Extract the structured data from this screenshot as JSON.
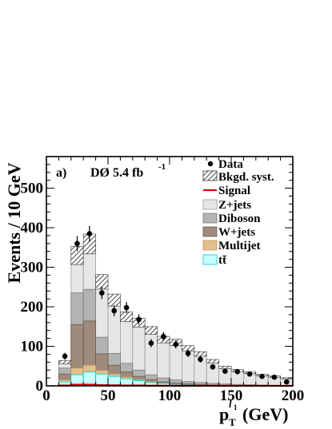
{
  "chart_data": {
    "type": "histogram",
    "panel_label": "a)",
    "experiment_label": "DØ 5.4 fb",
    "experiment_label_superscript": "-1",
    "ylabel": "Events / 10 GeV",
    "xlabel_main": "p",
    "xlabel_sub": "T",
    "xlabel_sup": "l",
    "xlabel_sup_sub": "1",
    "xlabel_unit": "(GeV)",
    "xlim": [
      0,
      200
    ],
    "ylim": [
      0,
      580
    ],
    "x_ticks": [
      0,
      50,
      100,
      150,
      200
    ],
    "x_tick_labels": [
      "0",
      "50",
      "100",
      "150",
      "200"
    ],
    "y_ticks": [
      0,
      100,
      200,
      300,
      400,
      500
    ],
    "y_tick_labels": [
      "0",
      "100",
      "200",
      "300",
      "400",
      "500"
    ],
    "bin_edges": [
      10,
      20,
      30,
      40,
      50,
      60,
      70,
      80,
      90,
      100,
      110,
      120,
      130,
      140,
      150,
      160,
      170,
      180,
      190,
      200
    ],
    "stack_order": [
      "ttbar",
      "multijet",
      "wjets",
      "diboson",
      "zjets"
    ],
    "series": [
      {
        "key": "ttbar",
        "name": "tt̄",
        "color": "#c8ffff",
        "edge": "#00cccc",
        "values": [
          10,
          28,
          35,
          30,
          24,
          18,
          13,
          9,
          6,
          4,
          3,
          2,
          1,
          1,
          0.5,
          0.5,
          0.3,
          0.2,
          0.1
        ]
      },
      {
        "key": "multijet",
        "name": "Multijet",
        "color": "#e3bf8e",
        "edge": "#c8965a",
        "values": [
          5,
          17,
          17,
          9,
          6,
          4,
          3,
          2,
          1,
          1,
          0.5,
          0.5,
          0.3,
          0.2,
          0.1,
          0.1,
          0.1,
          0,
          0
        ]
      },
      {
        "key": "wjets",
        "name": "W+jets",
        "color": "#9e8b7c",
        "edge": "#6a5a4c",
        "values": [
          15,
          110,
          112,
          42,
          22,
          13,
          8,
          5,
          3,
          2,
          1.5,
          1,
          1,
          0.5,
          0.5,
          0.3,
          0.2,
          0.2,
          0.1
        ]
      },
      {
        "key": "diboson",
        "name": "Diboson",
        "color": "#b3b3b3",
        "edge": "#7a7a7a",
        "values": [
          15,
          80,
          80,
          42,
          30,
          22,
          16,
          12,
          10,
          8,
          6,
          5,
          4,
          3,
          2.5,
          2,
          1.5,
          1,
          1
        ]
      },
      {
        "key": "zjets",
        "name": "Z+jets",
        "color": "#e6e6e6",
        "edge": "#9a9a9a",
        "values": [
          15,
          95,
          115,
          140,
          135,
          118,
          120,
          112,
          97,
          95,
          84,
          72,
          56,
          42,
          35,
          30,
          25,
          22,
          18
        ]
      }
    ],
    "signal": {
      "name": "Signal",
      "color": "#e00000",
      "values": [
        1,
        3,
        3,
        2,
        1.5,
        1,
        1,
        0.5,
        0.5,
        0.5,
        0.3,
        0.3,
        0.2,
        0.2,
        0.1,
        0.1,
        0.1,
        0.1,
        0.1
      ]
    },
    "syst_label": "Bkgd. syst.",
    "syst_fraction": 0.07,
    "data": {
      "name": "Data",
      "x": [
        15,
        25,
        35,
        45,
        55,
        65,
        75,
        85,
        95,
        105,
        115,
        125,
        135,
        145,
        155,
        165,
        175,
        185,
        195
      ],
      "y": [
        75,
        360,
        385,
        235,
        190,
        198,
        168,
        108,
        125,
        105,
        82,
        67,
        48,
        37,
        36,
        30,
        24,
        22,
        10
      ]
    },
    "legend_position": "top-right",
    "grid": false
  }
}
